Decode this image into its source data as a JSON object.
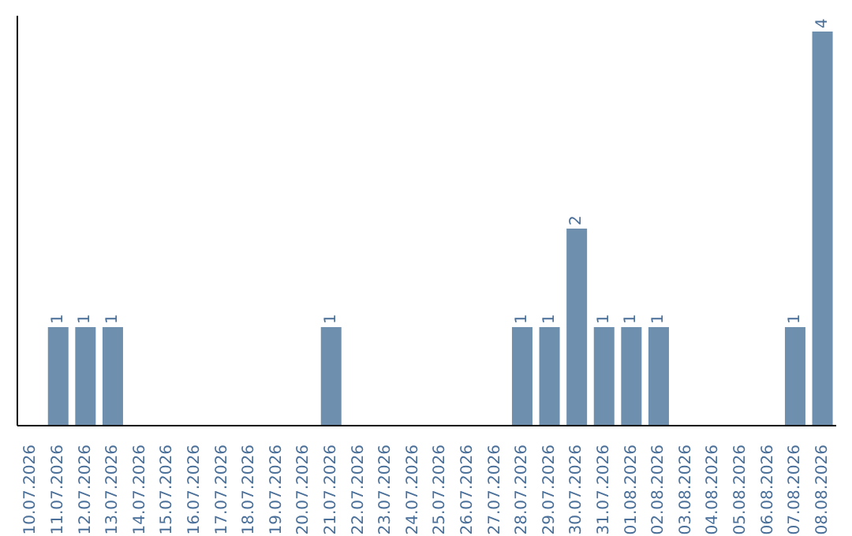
{
  "chart_data": {
    "type": "bar",
    "categories": [
      "10.07.2026",
      "11.07.2026",
      "12.07.2026",
      "13.07.2026",
      "14.07.2026",
      "15.07.2026",
      "16.07.2026",
      "17.07.2026",
      "18.07.2026",
      "19.07.2026",
      "20.07.2026",
      "21.07.2026",
      "22.07.2026",
      "23.07.2026",
      "24.07.2026",
      "25.07.2026",
      "26.07.2026",
      "27.07.2026",
      "28.07.2026",
      "29.07.2026",
      "30.07.2026",
      "31.07.2026",
      "01.08.2026",
      "02.08.2026",
      "03.08.2026",
      "04.08.2026",
      "05.08.2026",
      "06.08.2026",
      "07.08.2026",
      "08.08.2026"
    ],
    "values": [
      0,
      1,
      1,
      1,
      0,
      0,
      0,
      0,
      0,
      0,
      0,
      1,
      0,
      0,
      0,
      0,
      0,
      0,
      1,
      1,
      2,
      1,
      1,
      1,
      0,
      0,
      0,
      0,
      1,
      4
    ],
    "value_labels": [
      null,
      "1",
      "1",
      "1",
      null,
      null,
      null,
      null,
      null,
      null,
      null,
      "1",
      null,
      null,
      null,
      null,
      null,
      null,
      "1",
      "1",
      "2",
      "1",
      "1",
      "1",
      null,
      null,
      null,
      null,
      "1",
      "4"
    ],
    "color": "#6e8fad"
  }
}
